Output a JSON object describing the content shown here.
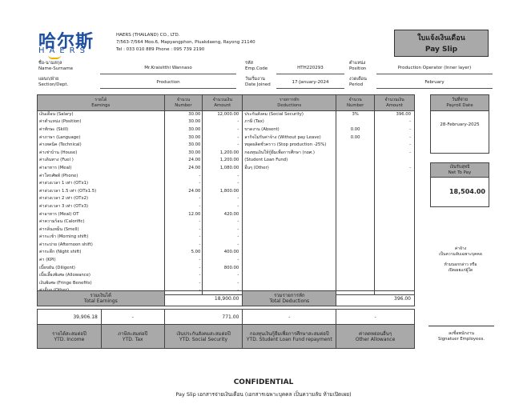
{
  "company": {
    "logo_cn": "哈尔斯",
    "logo_en": "HAERS",
    "name": "HAERS (THAILAND) CO., LTD.",
    "address": "7/563-7/564 Moo.6, Mapyangphon, Pluakdaeng, Rayong 21140",
    "contact": "Tel : 033 010 889 Phone : 095 739 2190"
  },
  "title": {
    "th": "ใบแจ้งเงินเดือน",
    "en": "Pay Slip"
  },
  "info": {
    "name_label_th": "ชื่อ-นามสกุล",
    "name_label_en": "Name-Surname",
    "name": "Mr.Kraisitthi Wannaso",
    "code_label_th": "รหัส",
    "code_label_en": "Emp.Code",
    "code": "HTH220293",
    "position_label_th": "ตำแหน่ง",
    "position_label_en": "Position",
    "position": "Production Operator (Inner layer)",
    "section_label_th": "แผนก/ฝ่าย",
    "section_label_en": "Section/Dept.",
    "section": "Production",
    "joined_label_th": "วันเริ่มงาน",
    "joined_label_en": "Date Joined",
    "joined": "17-January-2024",
    "period_label_th": "งวดเดือน",
    "period_label_en": "Period",
    "period": "February"
  },
  "headers": {
    "earn_th": "รายได้",
    "earn_en": "Earnings",
    "num_th": "จำนวน",
    "num_en": "Number",
    "amt_th": "จำนวนเงิน",
    "amt_en": "Amount",
    "ded_th": "รายการหัก",
    "ded_en": "Deductions"
  },
  "earnings": [
    {
      "label": "เงินเดือน (Salary)",
      "number": "30.00",
      "amount": "12,000.00"
    },
    {
      "label": "ค่าตำแหน่ง (Position)",
      "number": "30.00",
      "amount": "-"
    },
    {
      "label": "ค่าทักษะ (Skill)",
      "number": "30.00",
      "amount": "-"
    },
    {
      "label": "ค่าภาษา (Language)",
      "number": "30.00",
      "amount": "-"
    },
    {
      "label": "ค่าเทคนิค (Technical)",
      "number": "30.00",
      "amount": "-"
    },
    {
      "label": "ค่าเช่าบ้าน (House)",
      "number": "30.00",
      "amount": "1,200.00"
    },
    {
      "label": "ค่าเดินทาง (Fuel )",
      "number": "24.00",
      "amount": "1,200.00"
    },
    {
      "label": "ค่าอาหาร (Meal)",
      "number": "24.00",
      "amount": "1,080.00"
    },
    {
      "label": "ค่าโทรศัพท์ (Phone)",
      "number": "-",
      "amount": "-"
    },
    {
      "label": "ค่าล่วงเวลา 1 เท่า (OTx1)",
      "number": "-",
      "amount": "-"
    },
    {
      "label": "ค่าล่วงเวลา 1.5 เท่า (OTx1.5)",
      "number": "24.00",
      "amount": "1,800.00"
    },
    {
      "label": "ค่าล่วงเวลา 2 เท่า (OTx2)",
      "number": "-",
      "amount": "-"
    },
    {
      "label": "ค่าล่วงเวลา 3 เท่า (OTx3)",
      "number": "-",
      "amount": "-"
    },
    {
      "label": "ค่าอาหาร (Meal) OT",
      "number": "12.00",
      "amount": "420.00"
    },
    {
      "label": "ค่าความร้อน (Calorific)",
      "number": "-",
      "amount": "-"
    },
    {
      "label": "ค่ากลิ่นเหม็น (Smell)",
      "number": "-",
      "amount": "-"
    },
    {
      "label": "ค่ากะเช้า (Morning shift)",
      "number": "-",
      "amount": "-"
    },
    {
      "label": "ค่ากะบ่าย (Afternoon shift)",
      "number": "-",
      "amount": "-"
    },
    {
      "label": "ค่ากะดึก (Night shift)",
      "number": "5.00",
      "amount": "400.00"
    },
    {
      "label": "ค่า (KPI)",
      "number": "-",
      "amount": "-"
    },
    {
      "label": "เบี้ยขยัน (Diligent)",
      "number": "-",
      "amount": "800.00"
    },
    {
      "label": "เบี้ยเลี้ยงพิเศษ (Allowance)",
      "number": "-",
      "amount": "-"
    },
    {
      "label": "เงินพิเศษ (Fringe Benefits)",
      "number": "-",
      "amount": "-"
    },
    {
      "label": "ค่าอื่นๆ (Other)",
      "number": "-",
      "amount": "-"
    }
  ],
  "deductions": [
    {
      "label": "ประกันสังคม (Social Security)",
      "number": "3%",
      "amount": "396.00"
    },
    {
      "label": "ภาษี (Tax)",
      "number": "",
      "amount": "-"
    },
    {
      "label": "ขาดงาน (Absent)",
      "number": "0.00",
      "amount": "-"
    },
    {
      "label": "ลากิจไม่รับค่าจ้าง (Without pay Leave)",
      "number": "0.00",
      "amount": "-"
    },
    {
      "label": "หยุดผลิตชั่วคราว (Stop production -25%)",
      "number": "",
      "amount": "-"
    },
    {
      "label": "กองทุนเงินให้กู้ยืมเพื่อการศึกษา (กยศ.)",
      "number": "",
      "amount": "-"
    },
    {
      "label": "(Student Loan Fund)",
      "number": "",
      "amount": ""
    },
    {
      "label": "อื่นๆ (Other)",
      "number": "",
      "amount": "-"
    }
  ],
  "side": {
    "payroll_th": "วันที่จ่าย",
    "payroll_en": "Payroll Date",
    "payroll_date": "28-February-2025",
    "net_th": "เงินรับสุทธิ",
    "net_en": "Net To Pay",
    "net": "18,504.00",
    "note1a": "ค่าจ้าง",
    "note1b": "เป็นความลับเฉพาะบุคคล",
    "note2a": "ห้ามบอกกล่าว หรือ",
    "note2b": "เปิดเผยแก่ผู้ใด"
  },
  "totals": {
    "earn_th": "รวมเงินได้",
    "earn_en": "Total Earnings",
    "earn": "18,900.00",
    "ded_th": "รวมรายการหัก",
    "ded_en": "Total Deductions",
    "ded": "396.00"
  },
  "ytd": [
    {
      "value": "39,906.18",
      "th": "รายได้สะสมต่อปี",
      "en": "YTD. Income"
    },
    {
      "value": "-",
      "th": "ภาษีสะสมต่อปี",
      "en": "YTD. Tax"
    },
    {
      "value": "771.00",
      "th": "เงินประกันสังคมสะสมต่อปี",
      "en": "YTD. Social Security"
    },
    {
      "value": "-",
      "th": "กองทุนเงินกู้ยืมเพื่อการศึกษาสะสมต่อปี",
      "en": "YTD. Student Loan Fund repayment"
    },
    {
      "value": "-",
      "th": "ค่าลดหย่อนอื่นๆ",
      "en": "Other Allowance"
    }
  ],
  "signature": {
    "th": "ลงชื่อพนักงาน",
    "en": "Signatuer Employees."
  },
  "footer": {
    "confidential": "CONFIDENTIAL",
    "note": "Pay Slip เอกสารจ่ายเงินเดือน (เอกสารเฉพาะบุคคล เป็นความลับ ห้ามเปิดเผย)"
  }
}
